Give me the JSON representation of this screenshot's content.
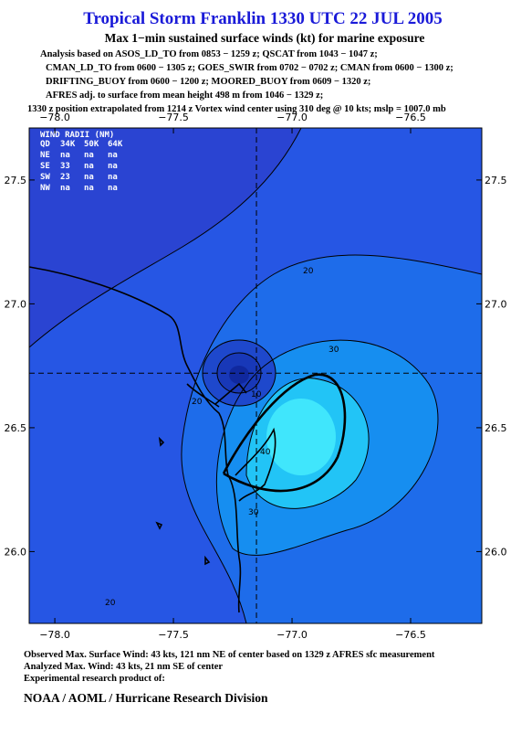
{
  "header": {
    "title": "Tropical Storm Franklin 1330 UTC 22 JUL 2005",
    "subtitle": "Max 1−min sustained surface winds (kt) for marine exposure",
    "analysis_lines": [
      "Analysis based on  ASOS_LD_TO from 0853 − 1259 z;  QSCAT from 1043 − 1047 z;",
      "CMAN_LD_TO from 0600 − 1305 z;  GOES_SWIR from 0702 − 0702 z;  CMAN from 0600 − 1300 z;",
      "DRIFTING_BUOY from 0600 − 1200 z;  MOORED_BUOY from 0609 − 1320 z;",
      "AFRES adj. to surface from mean height 498 m from 1046 − 1329 z;",
      "1330 z position extrapolated from 1214 z Vortex wind center using 310 deg @ 10 kts; mslp = 1007.0 mb"
    ]
  },
  "map": {
    "xlim": [
      -78.108,
      -76.2
    ],
    "ylim": [
      25.71,
      27.71
    ],
    "xticks": [
      {
        "value": -78.0,
        "label": "−78.0"
      },
      {
        "value": -77.5,
        "label": "−77.5"
      },
      {
        "value": -77.0,
        "label": "−77.0"
      },
      {
        "value": -76.5,
        "label": "−76.5"
      }
    ],
    "yticks": [
      {
        "value": 26.0,
        "label": "26.0"
      },
      26.5,
      {
        "value": 27.0,
        "label": "27.0"
      },
      27.5
    ],
    "center": [
      -77.15,
      26.72
    ],
    "wind_radii": {
      "title": "WIND RADII (NM)",
      "columns": [
        "QD",
        "34K",
        "50K",
        "64K"
      ],
      "rows": [
        [
          "NE",
          "na",
          "na",
          "na"
        ],
        [
          "SE",
          "33",
          "na",
          "na"
        ],
        [
          "SW",
          "23",
          "na",
          "na"
        ],
        [
          "NW",
          "na",
          "na",
          "na"
        ]
      ]
    },
    "contour_labels": [
      "20",
      "30",
      "40",
      "10",
      "20",
      "30",
      "20"
    ]
  },
  "footer": {
    "lines": [
      "Observed Max. Surface Wind: 43 kts, 121 nm NE of center based on 1329 z AFRES sfc measurement",
      "Analyzed Max. Wind: 43 kts, 21 nm SE of center",
      "Experimental research product of:"
    ],
    "organization": "NOAA / AOML / Hurricane Research Division"
  }
}
